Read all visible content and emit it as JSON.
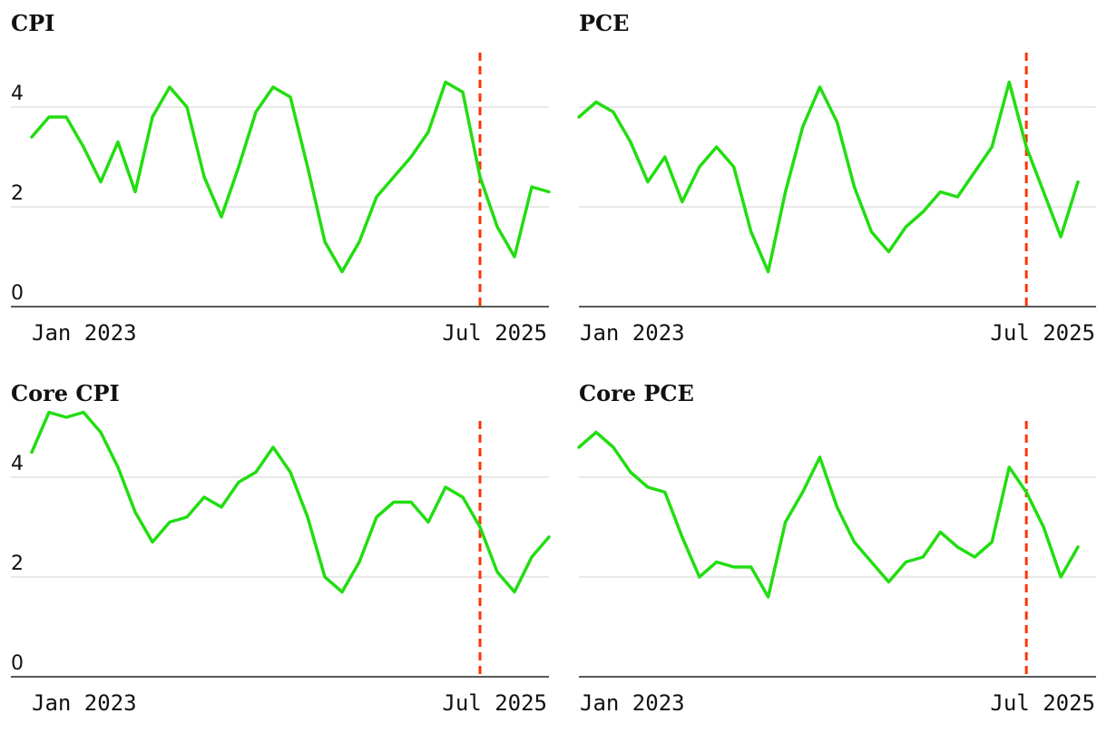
{
  "colors": {
    "series": "#22dd11",
    "marker": "#ff3300",
    "grid": "#e0e0e0",
    "axis": "#222222"
  },
  "chart_data": [
    {
      "type": "line",
      "title": "CPI",
      "ylim": [
        0,
        5
      ],
      "yticks": [
        0,
        2,
        4
      ],
      "grid": true,
      "x_start": "2023-01",
      "x_end": "2025-07",
      "xtick_labels": [
        "Jan 2023",
        "Jul 2025"
      ],
      "marker_x": "2025-03",
      "x": [
        "2023-01",
        "2023-02",
        "2023-03",
        "2023-04",
        "2023-05",
        "2023-06",
        "2023-07",
        "2023-08",
        "2023-09",
        "2023-10",
        "2023-11",
        "2023-12",
        "2024-01",
        "2024-02",
        "2024-03",
        "2024-04",
        "2024-05",
        "2024-06",
        "2024-07",
        "2024-08",
        "2024-09",
        "2024-10",
        "2024-11",
        "2024-12",
        "2025-01",
        "2025-02",
        "2025-03",
        "2025-04",
        "2025-05",
        "2025-06",
        "2025-07"
      ],
      "values": [
        3.4,
        3.8,
        3.8,
        3.2,
        2.5,
        3.3,
        2.3,
        3.8,
        4.4,
        4.0,
        2.6,
        1.8,
        2.8,
        3.9,
        4.4,
        4.2,
        2.8,
        1.3,
        0.7,
        1.3,
        2.2,
        2.6,
        3.0,
        3.5,
        4.5,
        4.3,
        2.6,
        1.6,
        1.0,
        2.4,
        2.3
      ]
    },
    {
      "type": "line",
      "title": "PCE",
      "ylim": [
        0,
        5
      ],
      "yticks": [
        0,
        2,
        4
      ],
      "grid": true,
      "x_start": "2023-01",
      "x_end": "2025-07",
      "xtick_labels": [
        "Jan 2023",
        "Jul 2025"
      ],
      "marker_x": "2025-03",
      "x": [
        "2023-01",
        "2023-02",
        "2023-03",
        "2023-04",
        "2023-05",
        "2023-06",
        "2023-07",
        "2023-08",
        "2023-09",
        "2023-10",
        "2023-11",
        "2023-12",
        "2024-01",
        "2024-02",
        "2024-03",
        "2024-04",
        "2024-05",
        "2024-06",
        "2024-07",
        "2024-08",
        "2024-09",
        "2024-10",
        "2024-11",
        "2024-12",
        "2025-01",
        "2025-02",
        "2025-03",
        "2025-04",
        "2025-05",
        "2025-06"
      ],
      "values": [
        3.8,
        4.1,
        3.9,
        3.3,
        2.5,
        3.0,
        2.1,
        2.8,
        3.2,
        2.8,
        1.5,
        0.7,
        2.3,
        3.6,
        4.4,
        3.7,
        2.4,
        1.5,
        1.1,
        1.6,
        1.9,
        2.3,
        2.2,
        2.7,
        3.2,
        4.5,
        3.2,
        2.3,
        1.4,
        2.5
      ]
    },
    {
      "type": "line",
      "title": "Core CPI",
      "ylim": [
        0,
        5
      ],
      "yticks": [
        0,
        2,
        4
      ],
      "grid": true,
      "x_start": "2023-01",
      "x_end": "2025-07",
      "xtick_labels": [
        "Jan 2023",
        "Jul 2025"
      ],
      "marker_x": "2025-03",
      "x": [
        "2023-01",
        "2023-02",
        "2023-03",
        "2023-04",
        "2023-05",
        "2023-06",
        "2023-07",
        "2023-08",
        "2023-09",
        "2023-10",
        "2023-11",
        "2023-12",
        "2024-01",
        "2024-02",
        "2024-03",
        "2024-04",
        "2024-05",
        "2024-06",
        "2024-07",
        "2024-08",
        "2024-09",
        "2024-10",
        "2024-11",
        "2024-12",
        "2025-01",
        "2025-02",
        "2025-03",
        "2025-04",
        "2025-05",
        "2025-06",
        "2025-07"
      ],
      "values": [
        4.5,
        5.3,
        5.2,
        5.3,
        4.9,
        4.2,
        3.3,
        2.7,
        3.1,
        3.2,
        3.6,
        3.4,
        3.9,
        4.1,
        4.6,
        4.1,
        3.2,
        2.0,
        1.7,
        2.3,
        3.2,
        3.5,
        3.5,
        3.1,
        3.8,
        3.6,
        3.0,
        2.1,
        1.7,
        2.4,
        2.8
      ]
    },
    {
      "type": "line",
      "title": "Core PCE",
      "ylim": [
        0,
        5
      ],
      "yticks": [
        0,
        2,
        4
      ],
      "grid": true,
      "x_start": "2023-01",
      "x_end": "2025-07",
      "xtick_labels": [
        "Jan 2023",
        "Jul 2025"
      ],
      "marker_x": "2025-03",
      "x": [
        "2023-01",
        "2023-02",
        "2023-03",
        "2023-04",
        "2023-05",
        "2023-06",
        "2023-07",
        "2023-08",
        "2023-09",
        "2023-10",
        "2023-11",
        "2023-12",
        "2024-01",
        "2024-02",
        "2024-03",
        "2024-04",
        "2024-05",
        "2024-06",
        "2024-07",
        "2024-08",
        "2024-09",
        "2024-10",
        "2024-11",
        "2024-12",
        "2025-01",
        "2025-02",
        "2025-03",
        "2025-04",
        "2025-05",
        "2025-06"
      ],
      "values": [
        4.6,
        4.9,
        4.6,
        4.1,
        3.8,
        3.7,
        2.8,
        2.0,
        2.3,
        2.2,
        2.2,
        1.6,
        3.1,
        3.7,
        4.4,
        3.4,
        2.7,
        2.3,
        1.9,
        2.3,
        2.4,
        2.9,
        2.6,
        2.4,
        2.7,
        4.2,
        3.7,
        3.0,
        2.0,
        2.6
      ]
    }
  ]
}
